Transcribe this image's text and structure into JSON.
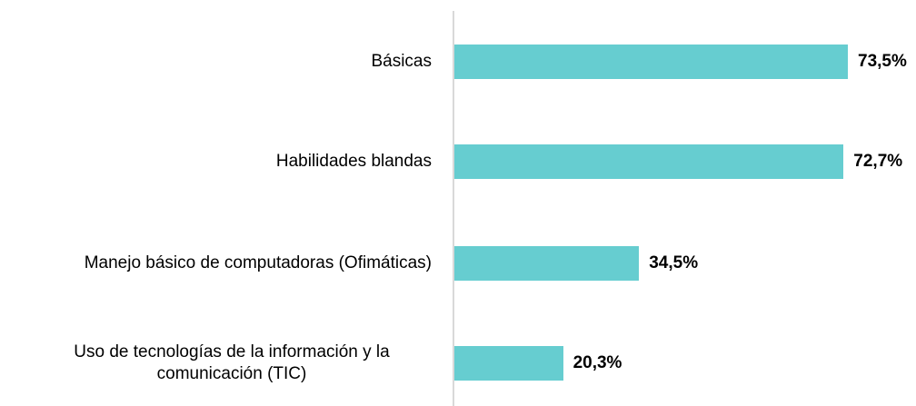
{
  "chart_data": {
    "type": "bar",
    "orientation": "horizontal",
    "categories": [
      "Básicas",
      "Habilidades blandas",
      "Manejo básico de computadoras (Ofimáticas)",
      "Uso de tecnologías de la información y la comunicación (TIC)"
    ],
    "values": [
      73.5,
      72.7,
      34.5,
      20.3
    ],
    "value_labels": [
      "73,5%",
      "72,7%",
      "34,5%",
      "20,3%"
    ],
    "color": "#66cdd0"
  }
}
